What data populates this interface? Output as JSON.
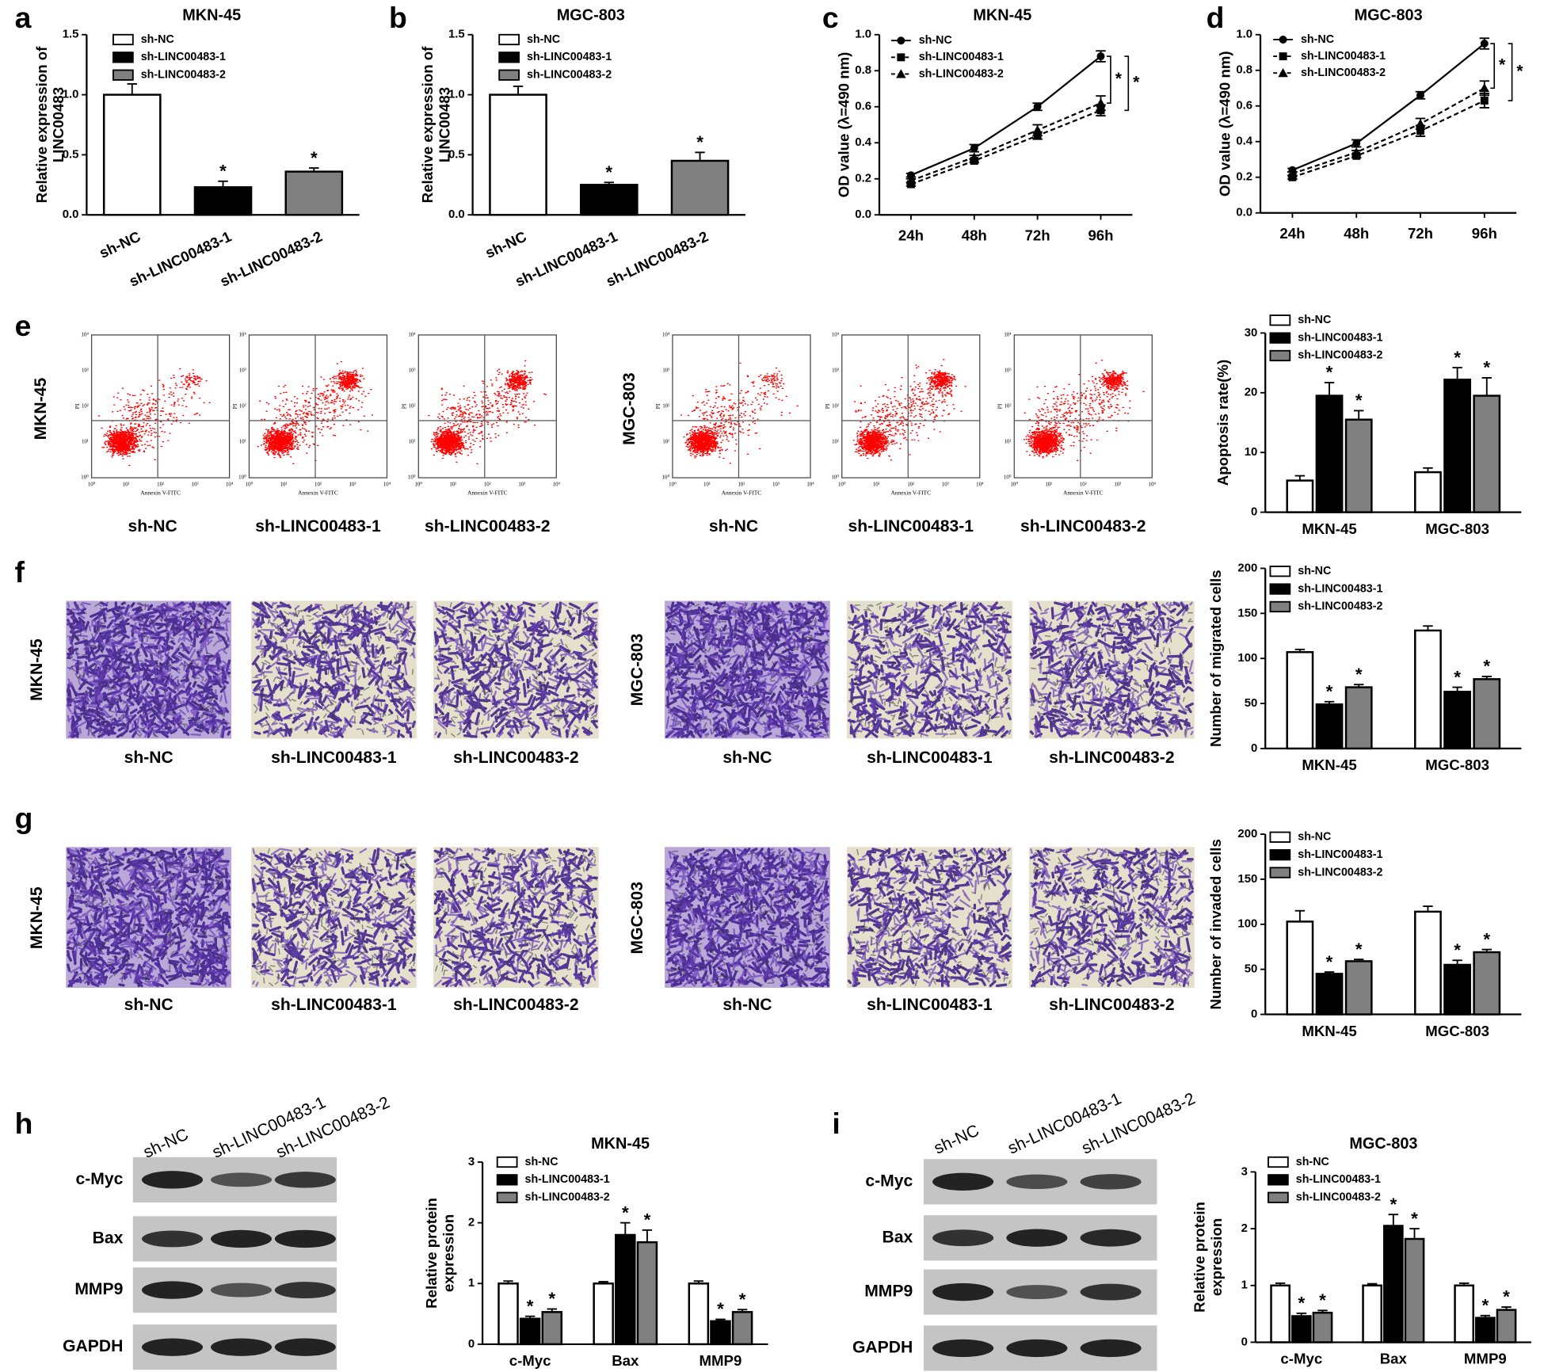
{
  "panel_labels": [
    "a",
    "b",
    "c",
    "d",
    "e",
    "f",
    "g",
    "h",
    "i"
  ],
  "chart_data": [
    {
      "type": "bar",
      "title": "MKN-45",
      "ylabel": [
        "Relative expression of",
        "LINC00483"
      ],
      "categories": [
        "sh-NC",
        "sh-LINC00483-1",
        "sh-LINC00483-2"
      ],
      "values": [
        1.0,
        0.23,
        0.36
      ],
      "errors": [
        0.09,
        0.05,
        0.03
      ],
      "colors": [
        "#ffffff",
        "#000000",
        "#808080"
      ],
      "significance": [
        null,
        "*",
        "*"
      ],
      "ylim": [
        0,
        1.5
      ],
      "yticks": [
        {
          "value": 0,
          "label": "0.0"
        },
        {
          "value": 0.5,
          "label": "0.5"
        },
        {
          "value": 1,
          "label": "1.0"
        },
        {
          "value": 1.5,
          "label": "1.5"
        }
      ]
    },
    {
      "type": "bar",
      "title": "MGC-803",
      "ylabel": [
        "Relative expression of",
        "LINC00483"
      ],
      "categories": [
        "sh-NC",
        "sh-LINC00483-1",
        "sh-LINC00483-2"
      ],
      "values": [
        1.0,
        0.25,
        0.45
      ],
      "errors": [
        0.07,
        0.02,
        0.07
      ],
      "colors": [
        "#ffffff",
        "#000000",
        "#808080"
      ],
      "significance": [
        null,
        "*",
        "*"
      ],
      "ylim": [
        0,
        1.5
      ],
      "yticks": [
        {
          "value": 0,
          "label": "0.0"
        },
        {
          "value": 0.5,
          "label": "0.5"
        },
        {
          "value": 1,
          "label": "1.0"
        },
        {
          "value": 1.5,
          "label": "1.5"
        }
      ]
    },
    {
      "type": "line",
      "title": "MKN-45",
      "ylabel": [
        "OD value (λ=490 nm)"
      ],
      "categories": [
        "24h",
        "48h",
        "72h",
        "96h"
      ],
      "series": [
        {
          "name": "sh-NC",
          "color": "#000000",
          "marker": "circle",
          "dashed": false,
          "values": [
            0.22,
            0.37,
            0.6,
            0.88
          ],
          "errors": [
            0.01,
            0.02,
            0.02,
            0.03
          ]
        },
        {
          "name": "sh-LINC00483-1",
          "color": "#000000",
          "marker": "square",
          "dashed": true,
          "values": [
            0.17,
            0.3,
            0.44,
            0.58
          ],
          "errors": [
            0.01,
            0.01,
            0.02,
            0.03
          ]
        },
        {
          "name": "sh-LINC00483-2",
          "color": "#000000",
          "marker": "triangle",
          "dashed": true,
          "values": [
            0.19,
            0.32,
            0.47,
            0.62
          ],
          "errors": [
            0.01,
            0.01,
            0.03,
            0.04
          ]
        }
      ],
      "annotations": [
        "*",
        "*"
      ],
      "ylim": [
        0,
        1
      ],
      "yticks": [
        {
          "value": 0,
          "label": "0.0"
        },
        0.2,
        0.4,
        0.6,
        0.8,
        {
          "value": 1,
          "label": "1.0"
        }
      ]
    },
    {
      "type": "line",
      "title": "MGC-803",
      "ylabel": [
        "OD value (λ=490 nm)"
      ],
      "categories": [
        "24h",
        "48h",
        "72h",
        "96h"
      ],
      "series": [
        {
          "name": "sh-NC",
          "color": "#000000",
          "marker": "circle",
          "dashed": false,
          "values": [
            0.24,
            0.39,
            0.66,
            0.95
          ],
          "errors": [
            0.01,
            0.02,
            0.02,
            0.03
          ]
        },
        {
          "name": "sh-LINC00483-1",
          "color": "#000000",
          "marker": "square",
          "dashed": true,
          "values": [
            0.2,
            0.32,
            0.46,
            0.63
          ],
          "errors": [
            0.01,
            0.01,
            0.03,
            0.04
          ]
        },
        {
          "name": "sh-LINC00483-2",
          "color": "#000000",
          "marker": "triangle",
          "dashed": true,
          "values": [
            0.22,
            0.34,
            0.5,
            0.7
          ],
          "errors": [
            0.01,
            0.01,
            0.03,
            0.04
          ]
        }
      ],
      "annotations": [
        "*",
        "*"
      ],
      "ylim": [
        0,
        1
      ],
      "yticks": [
        {
          "value": 0,
          "label": "0.0"
        },
        0.2,
        0.4,
        0.6,
        0.8,
        {
          "value": 1,
          "label": "1.0"
        }
      ]
    },
    {
      "type": "bar",
      "ylabel": [
        "Apoptosis rate(%)"
      ],
      "categories": [
        "MKN-45",
        "MGC-803"
      ],
      "series": [
        {
          "name": "sh-NC",
          "color": "#ffffff",
          "values": [
            5.3,
            6.7
          ],
          "errors": [
            0.8,
            0.7
          ],
          "significance": [
            null,
            null
          ]
        },
        {
          "name": "sh-LINC00483-1",
          "color": "#000000",
          "values": [
            19.5,
            22.2
          ],
          "errors": [
            2.2,
            2.0
          ],
          "significance": [
            "*",
            "*"
          ]
        },
        {
          "name": "sh-LINC00483-2",
          "color": "#808080",
          "values": [
            15.5,
            19.5
          ],
          "errors": [
            1.5,
            3.0
          ],
          "significance": [
            "*",
            "*"
          ]
        }
      ],
      "ylim": [
        0,
        30
      ],
      "yticks": [
        0,
        10,
        20,
        30
      ]
    },
    {
      "type": "bar",
      "ylabel": [
        "Number of migrated cells"
      ],
      "categories": [
        "MKN-45",
        "MGC-803"
      ],
      "series": [
        {
          "name": "sh-NC",
          "color": "#ffffff",
          "values": [
            107,
            131
          ],
          "errors": [
            3,
            5
          ],
          "significance": [
            null,
            null
          ]
        },
        {
          "name": "sh-LINC00483-1",
          "color": "#000000",
          "values": [
            49,
            63
          ],
          "errors": [
            3,
            5
          ],
          "significance": [
            "*",
            "*"
          ]
        },
        {
          "name": "sh-LINC00483-2",
          "color": "#808080",
          "values": [
            68,
            77
          ],
          "errors": [
            3,
            3
          ],
          "significance": [
            "*",
            "*"
          ]
        }
      ],
      "ylim": [
        0,
        200
      ],
      "yticks": [
        0,
        50,
        100,
        150,
        200
      ]
    },
    {
      "type": "bar",
      "ylabel": [
        "Number of invaded cells"
      ],
      "categories": [
        "MKN-45",
        "MGC-803"
      ],
      "series": [
        {
          "name": "sh-NC",
          "color": "#ffffff",
          "values": [
            103,
            114
          ],
          "errors": [
            12,
            6
          ],
          "significance": [
            null,
            null
          ]
        },
        {
          "name": "sh-LINC00483-1",
          "color": "#000000",
          "values": [
            45,
            55
          ],
          "errors": [
            2,
            5
          ],
          "significance": [
            "*",
            "*"
          ]
        },
        {
          "name": "sh-LINC00483-2",
          "color": "#808080",
          "values": [
            59,
            69
          ],
          "errors": [
            2,
            3
          ],
          "significance": [
            "*",
            "*"
          ]
        }
      ],
      "ylim": [
        0,
        200
      ],
      "yticks": [
        0,
        50,
        100,
        150,
        200
      ]
    },
    {
      "type": "bar",
      "title": "MKN-45",
      "ylabel": [
        "Relative protein",
        "expression"
      ],
      "categories": [
        "c-Myc",
        "Bax",
        "MMP9"
      ],
      "series": [
        {
          "name": "sh-NC",
          "color": "#ffffff",
          "values": [
            1.0,
            1.0,
            1.0
          ],
          "errors": [
            0.04,
            0.03,
            0.04
          ],
          "significance": [
            null,
            null,
            null
          ]
        },
        {
          "name": "sh-LINC00483-1",
          "color": "#000000",
          "values": [
            0.42,
            1.8,
            0.38
          ],
          "errors": [
            0.04,
            0.2,
            0.03
          ],
          "significance": [
            "*",
            "*",
            "*"
          ]
        },
        {
          "name": "sh-LINC00483-2",
          "color": "#808080",
          "values": [
            0.53,
            1.68,
            0.53
          ],
          "errors": [
            0.05,
            0.2,
            0.04
          ],
          "significance": [
            "*",
            "*",
            "*"
          ]
        }
      ],
      "ylim": [
        0,
        3
      ],
      "yticks": [
        0,
        1,
        2,
        3
      ]
    },
    {
      "type": "bar",
      "title": "MGC-803",
      "ylabel": [
        "Relative protein",
        "expression"
      ],
      "categories": [
        "c-Myc",
        "Bax",
        "MMP9"
      ],
      "series": [
        {
          "name": "sh-NC",
          "color": "#ffffff",
          "values": [
            1.0,
            1.0,
            1.0
          ],
          "errors": [
            0.04,
            0.03,
            0.04
          ],
          "significance": [
            null,
            null,
            null
          ]
        },
        {
          "name": "sh-LINC00483-1",
          "color": "#000000",
          "values": [
            0.46,
            2.05,
            0.43
          ],
          "errors": [
            0.05,
            0.2,
            0.04
          ],
          "significance": [
            "*",
            "*",
            "*"
          ]
        },
        {
          "name": "sh-LINC00483-2",
          "color": "#808080",
          "values": [
            0.52,
            1.82,
            0.57
          ],
          "errors": [
            0.04,
            0.18,
            0.05
          ],
          "significance": [
            "*",
            "*",
            "*"
          ]
        }
      ],
      "ylim": [
        0,
        3
      ],
      "yticks": [
        0,
        1,
        2,
        3
      ]
    }
  ],
  "flow_cytometry": {
    "row_labels": [
      "MKN-45",
      "MGC-803"
    ],
    "x_label": "Annexin V-FITC",
    "y_label": "PI",
    "axis_ticks": [
      "10⁰",
      "10¹",
      "10²",
      "10³",
      "10⁴"
    ],
    "groups": [
      "sh-NC",
      "sh-LINC00483-1",
      "sh-LINC00483-2"
    ]
  },
  "migration": {
    "row_labels": [
      "MKN-45",
      "MGC-803"
    ],
    "groups": [
      "sh-NC",
      "sh-LINC00483-1",
      "sh-LINC00483-2"
    ]
  },
  "invasion": {
    "row_labels": [
      "MKN-45",
      "MGC-803"
    ],
    "groups": [
      "sh-NC",
      "sh-LINC00483-1",
      "sh-LINC00483-2"
    ]
  },
  "western_blots": [
    {
      "columns": [
        "sh-NC",
        "sh-LINC00483-1",
        "sh-LINC00483-2"
      ],
      "rows": [
        "c-Myc",
        "Bax",
        "MMP9",
        "GAPDH"
      ]
    },
    {
      "columns": [
        "sh-NC",
        "sh-LINC00483-1",
        "sh-LINC00483-2"
      ],
      "rows": [
        "c-Myc",
        "Bax",
        "MMP9",
        "GAPDH"
      ]
    }
  ]
}
